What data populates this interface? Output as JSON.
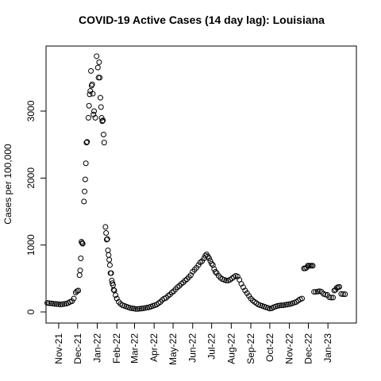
{
  "chart_data": {
    "type": "scatter",
    "title": "COVID-19 Active Cases (14 day lag): Louisiana",
    "y_label": "Cases per 100,000",
    "color": "#000000",
    "xlim": [
      -20,
      471
    ],
    "ylim": [
      -166,
      3972
    ],
    "yticks": [
      0,
      1000,
      2000,
      3000
    ],
    "xticks": [
      {
        "value": 0,
        "label": "Nov-21"
      },
      {
        "value": 30,
        "label": "Dec-21"
      },
      {
        "value": 61,
        "label": "Jan-22"
      },
      {
        "value": 92,
        "label": "Feb-22"
      },
      {
        "value": 120,
        "label": "Mar-22"
      },
      {
        "value": 151,
        "label": "Apr-22"
      },
      {
        "value": 181,
        "label": "May-22"
      },
      {
        "value": 212,
        "label": "Jun-22"
      },
      {
        "value": 242,
        "label": "Jul-22"
      },
      {
        "value": 273,
        "label": "Aug-22"
      },
      {
        "value": 304,
        "label": "Sep-22"
      },
      {
        "value": 334,
        "label": "Oct-22"
      },
      {
        "value": 365,
        "label": "Nov-22"
      },
      {
        "value": 395,
        "label": "Dec-22"
      },
      {
        "value": 426,
        "label": "Jan-23"
      }
    ],
    "x": [
      -18,
      -15,
      -12,
      -9,
      -6,
      -3,
      0,
      3,
      6,
      9,
      12,
      15,
      18,
      21,
      24,
      27,
      29,
      31,
      33,
      34,
      35,
      36,
      37,
      38,
      40,
      41,
      42,
      43,
      44,
      45,
      47,
      48,
      49,
      50,
      51,
      52,
      53,
      54,
      55,
      56,
      58,
      60,
      62,
      63,
      64,
      65,
      66,
      67,
      68,
      69,
      70,
      71,
      72,
      74,
      75,
      76,
      77,
      78,
      79,
      80,
      81,
      82,
      83,
      84,
      85,
      86,
      87,
      88,
      90,
      92,
      95,
      98,
      101,
      104,
      107,
      110,
      113,
      116,
      119,
      122,
      125,
      128,
      131,
      134,
      137,
      140,
      143,
      146,
      149,
      152,
      155,
      158,
      161,
      164,
      167,
      170,
      173,
      176,
      179,
      182,
      185,
      188,
      191,
      194,
      197,
      200,
      203,
      206,
      209,
      212,
      215,
      218,
      221,
      224,
      227,
      230,
      232,
      234,
      236,
      238,
      240,
      242,
      244,
      246,
      248,
      250,
      253,
      256,
      259,
      262,
      265,
      268,
      271,
      274,
      277,
      280,
      283,
      286,
      289,
      292,
      295,
      298,
      301,
      304,
      307,
      310,
      313,
      316,
      319,
      322,
      325,
      328,
      331,
      334,
      337,
      340,
      343,
      346,
      349,
      352,
      355,
      358,
      361,
      364,
      367,
      370,
      373,
      376,
      379,
      382,
      385,
      388,
      390,
      392,
      394,
      396,
      398,
      400,
      402,
      404,
      407,
      410,
      413,
      416,
      419,
      422,
      425,
      428,
      431,
      434,
      436,
      438,
      440,
      442,
      444,
      447,
      450,
      453
    ],
    "values": [
      135,
      130,
      128,
      125,
      120,
      118,
      115,
      112,
      115,
      120,
      125,
      135,
      150,
      160,
      200,
      290,
      310,
      320,
      550,
      620,
      800,
      1050,
      1030,
      1020,
      1650,
      1800,
      1980,
      2220,
      2530,
      2540,
      2900,
      3080,
      3250,
      3300,
      3600,
      3380,
      3400,
      3260,
      2950,
      3000,
      2900,
      3820,
      3650,
      3500,
      3730,
      3500,
      3200,
      3060,
      2900,
      2850,
      2860,
      2650,
      2530,
      1270,
      1180,
      1080,
      1090,
      920,
      850,
      780,
      700,
      580,
      580,
      470,
      430,
      400,
      330,
      320,
      250,
      200,
      150,
      120,
      100,
      90,
      80,
      70,
      60,
      55,
      50,
      45,
      45,
      48,
      50,
      55,
      60,
      65,
      70,
      80,
      90,
      100,
      110,
      130,
      150,
      180,
      200,
      210,
      240,
      260,
      290,
      310,
      340,
      370,
      390,
      420,
      440,
      470,
      490,
      520,
      550,
      600,
      630,
      660,
      700,
      740,
      760,
      800,
      840,
      860,
      830,
      800,
      760,
      720,
      700,
      640,
      600,
      580,
      540,
      510,
      490,
      480,
      470,
      470,
      480,
      500,
      520,
      540,
      530,
      480,
      420,
      370,
      320,
      280,
      240,
      200,
      170,
      150,
      130,
      110,
      100,
      90,
      80,
      70,
      60,
      50,
      55,
      70,
      80,
      90,
      95,
      100,
      100,
      105,
      110,
      115,
      120,
      130,
      140,
      150,
      170,
      190,
      200,
      650,
      650,
      660,
      690,
      690,
      690,
      690,
      690,
      300,
      300,
      305,
      310,
      300,
      270,
      260,
      255,
      220,
      215,
      215,
      320,
      330,
      360,
      370,
      375,
      270,
      265,
      265
    ]
  }
}
